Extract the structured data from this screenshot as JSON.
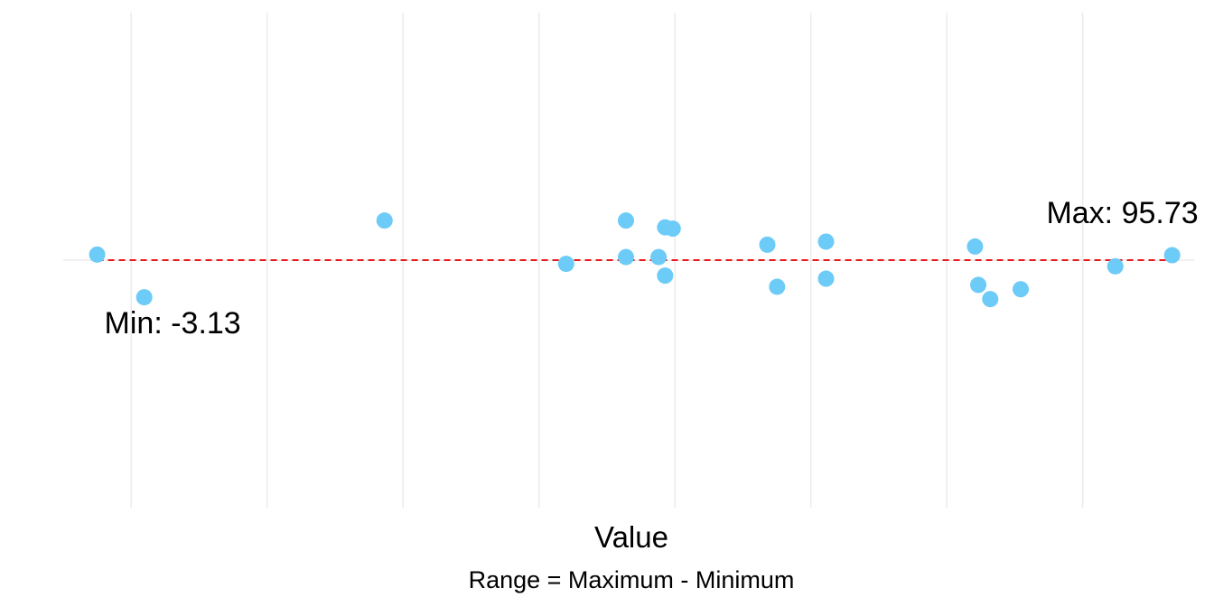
{
  "chart_data": {
    "type": "scatter",
    "title": "",
    "xlabel": "Value",
    "ylabel": "",
    "caption": "Range = Maximum - Minimum",
    "xlim": [
      -6.25,
      97.75
    ],
    "ylim": [
      -0.4,
      0.4
    ],
    "grid": true,
    "x_ticks_hidden": [
      0,
      12.5,
      25,
      37.5,
      50,
      62.5,
      75,
      87.5,
      100
    ],
    "point_color": "#6ccbf7",
    "range_line_color": "#e8161a",
    "reference_color": "#ebebeb",
    "points": [
      {
        "x": -3.13,
        "y": 0.009
      },
      {
        "x": 1.2,
        "y": -0.06
      },
      {
        "x": 23.3,
        "y": 0.064
      },
      {
        "x": 40.0,
        "y": -0.006
      },
      {
        "x": 45.5,
        "y": 0.064
      },
      {
        "x": 45.5,
        "y": 0.005
      },
      {
        "x": 48.5,
        "y": 0.005
      },
      {
        "x": 49.1,
        "y": -0.025
      },
      {
        "x": 49.1,
        "y": 0.053
      },
      {
        "x": 49.8,
        "y": 0.051
      },
      {
        "x": 58.5,
        "y": 0.025
      },
      {
        "x": 59.4,
        "y": -0.043
      },
      {
        "x": 63.9,
        "y": 0.03
      },
      {
        "x": 63.9,
        "y": -0.03
      },
      {
        "x": 77.6,
        "y": 0.022
      },
      {
        "x": 77.9,
        "y": -0.04
      },
      {
        "x": 79.0,
        "y": -0.063
      },
      {
        "x": 81.8,
        "y": -0.047
      },
      {
        "x": 90.5,
        "y": -0.01
      },
      {
        "x": 95.73,
        "y": 0.008
      }
    ],
    "min": {
      "value": -3.13,
      "label": "Min: -3.13"
    },
    "max": {
      "value": 95.73,
      "label": "Max: 95.73"
    }
  }
}
